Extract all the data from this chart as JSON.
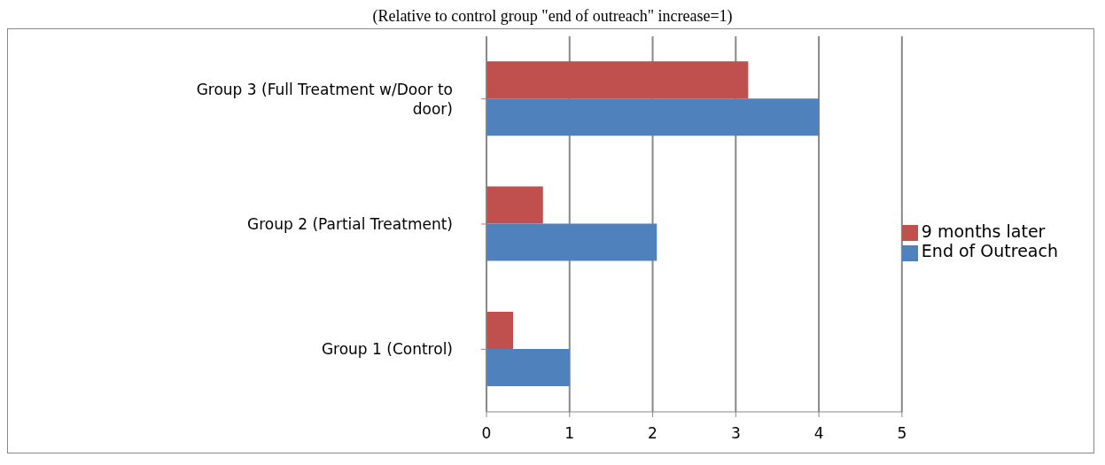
{
  "chart_data": {
    "type": "bar",
    "orientation": "horizontal",
    "subtitle": "(Relative to control group \"end of outreach\" increase=1)",
    "categories": [
      "Group 3 (Full Treatment  w/Door to door)",
      "Group 2 (Partial Treatment)",
      "Group 1 (Control)"
    ],
    "series": [
      {
        "name": "9 months later",
        "color": "#c0504d",
        "values": [
          3.15,
          0.68,
          0.32
        ]
      },
      {
        "name": "End of Outreach",
        "color": "#4f81bd",
        "values": [
          4,
          2.05,
          1
        ]
      }
    ],
    "xlim": [
      0,
      5
    ],
    "xticks": [
      0,
      1,
      2,
      3,
      4,
      5
    ],
    "grid": "x",
    "legend": "right"
  }
}
